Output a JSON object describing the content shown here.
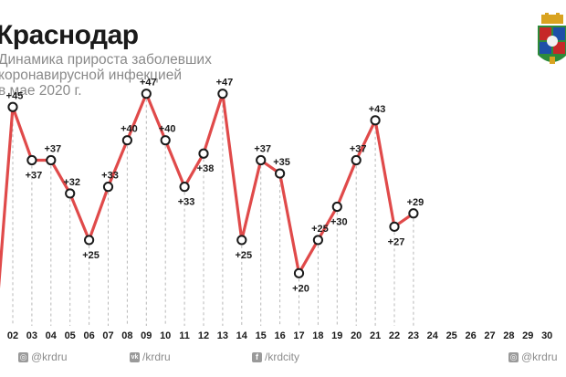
{
  "header": {
    "title": "Краснодар",
    "subtitle_lines": [
      "Динамика прироста заболевших",
      "коронавирусной инфекцией",
      "в мае 2020 г."
    ]
  },
  "emblem": {
    "icon": "krasnodar-coat-of-arms-icon"
  },
  "colors": {
    "line": "#e04a4a",
    "marker_fill": "#ffffff",
    "marker_stroke": "#1a1a1a",
    "text": "#1a1a1a",
    "axis_text": "#1a1a1a",
    "grid_dash": "#b8b8b8"
  },
  "chart_data": {
    "type": "line",
    "x": [
      "02",
      "03",
      "04",
      "05",
      "06",
      "07",
      "08",
      "09",
      "10",
      "11",
      "12",
      "13",
      "14",
      "15",
      "16",
      "17",
      "18",
      "19",
      "20",
      "21",
      "22",
      "23"
    ],
    "x_extra_ticks": [
      "24",
      "25",
      "26",
      "27",
      "28",
      "29",
      "30"
    ],
    "values": [
      45,
      37,
      37,
      32,
      25,
      33,
      40,
      47,
      40,
      33,
      38,
      47,
      25,
      37,
      35,
      20,
      25,
      30,
      37,
      43,
      27,
      29
    ],
    "labels": [
      "+45",
      "+37",
      "+37",
      "+32",
      "+25",
      "+33",
      "+40",
      "+47",
      "+40",
      "+33",
      "+38",
      "+47",
      "+25",
      "+37",
      "+35",
      "+20",
      "+25",
      "+30",
      "+37",
      "+43",
      "+27",
      "+29"
    ],
    "label_positions": [
      "above",
      "below",
      "above",
      "above",
      "below",
      "above",
      "above",
      "above",
      "above",
      "below",
      "below",
      "above",
      "below",
      "above",
      "above",
      "below",
      "above",
      "below",
      "above",
      "above",
      "below",
      "above"
    ],
    "ylim": [
      0,
      60
    ],
    "grid": "dashed-vertical",
    "legend": "none"
  },
  "footer": {
    "socials": [
      {
        "icon": "instagram-icon",
        "glyph": "◎",
        "handle": "@krdru"
      },
      {
        "icon": "vk-icon",
        "glyph": "vk",
        "handle": "/krdru"
      },
      {
        "icon": "facebook-icon",
        "glyph": "f",
        "handle": "/krdcity"
      },
      {
        "icon": "twitter-icon",
        "glyph": "◎",
        "handle": "@krdru"
      }
    ]
  }
}
